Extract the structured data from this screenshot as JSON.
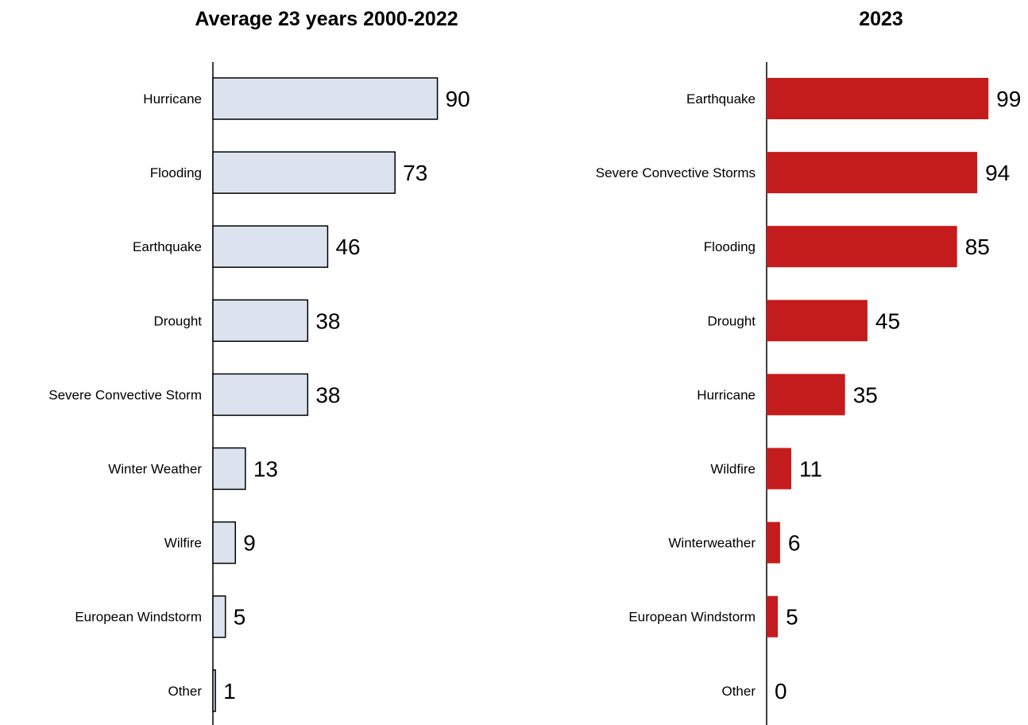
{
  "chart_data": [
    {
      "type": "bar",
      "orientation": "horizontal",
      "title": "Average 23 years 2000-2022",
      "categories": [
        "Hurricane",
        "Flooding",
        "Earthquake",
        "Drought",
        "Severe Convective Storm",
        "Winter Weather",
        "Wilfire",
        "European Windstorm",
        "Other"
      ],
      "values": [
        90,
        73,
        46,
        38,
        38,
        13,
        9,
        5,
        1
      ],
      "value_labels": [
        "90",
        "73",
        "46",
        "38",
        "38",
        "13",
        "9",
        "5",
        "1"
      ],
      "bar_color": "#dde3ee",
      "bar_border": "#000000",
      "xlim": [
        0,
        100
      ],
      "grid": false,
      "legend": "none"
    },
    {
      "type": "bar",
      "orientation": "horizontal",
      "title": "2023",
      "categories": [
        "Earthquake",
        "Severe Convective Storms",
        "Flooding",
        "Drought",
        "Hurricane",
        "Wildfire",
        "Winterweather",
        "European Windstorm",
        "Other"
      ],
      "values": [
        99,
        94,
        85,
        45,
        35,
        11,
        6,
        5,
        0
      ],
      "value_labels": [
        "99",
        "94",
        "85",
        "45",
        "35",
        "11",
        "6",
        "5",
        "0"
      ],
      "bar_color": "#c41c1c",
      "bar_border": "none",
      "xlim": [
        0,
        100
      ],
      "grid": false,
      "legend": "none"
    }
  ]
}
